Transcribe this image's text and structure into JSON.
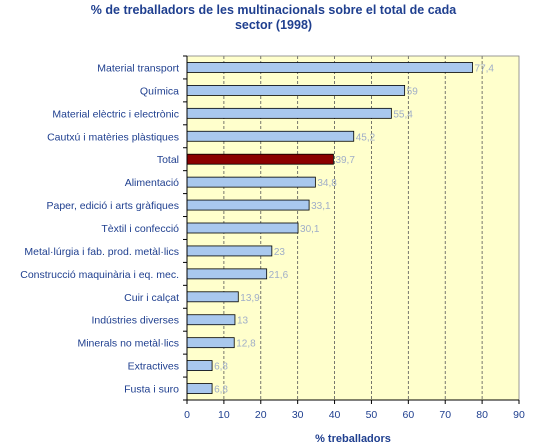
{
  "chart_data": {
    "type": "bar",
    "orientation": "horizontal",
    "title_lines": [
      "% de treballadors de les multinacionals sobre el total de cada",
      "sector (1998)"
    ],
    "xlabel": "% treballadors",
    "ylabel": "",
    "xlim": [
      0,
      90
    ],
    "xticks": [
      0,
      10,
      20,
      30,
      40,
      50,
      60,
      70,
      80,
      90
    ],
    "grid": "vertical-dashed",
    "categories": [
      "Material transport",
      "Química",
      "Material elèctric i electrònic",
      "Cautxú i matèries plàstiques",
      "Total",
      "Alimentació",
      "Paper, edició i arts gràfiques",
      "Tèxtil i confecció",
      "Metal·lúrgia i fab. prod. metàl·lics",
      "Construcció maquinària i eq. mec.",
      "Cuir i calçat",
      "Indústries diverses",
      "Minerals no metàl·lics",
      "Extractives",
      "Fusta i suro"
    ],
    "values": [
      77.4,
      59,
      55.4,
      45.2,
      39.7,
      34.8,
      33.1,
      30.1,
      23,
      21.6,
      13.9,
      13,
      12.8,
      6.8,
      6.8
    ],
    "value_labels": [
      "77,4",
      "59",
      "55,4",
      "45,2",
      "39,7",
      "34,8",
      "33,1",
      "30,1",
      "23",
      "21,6",
      "13,9",
      "13",
      "12,8",
      "6,8",
      "6,8"
    ],
    "highlight_category": "Total",
    "colors": {
      "bar": "#a9c8ee",
      "highlight_bar": "#8b0000",
      "plot_background": "#ffffcc",
      "bar_stroke": "#000000",
      "value_label": "#a0aec8",
      "text": "#1f3f8f",
      "grid": "#555555"
    }
  }
}
